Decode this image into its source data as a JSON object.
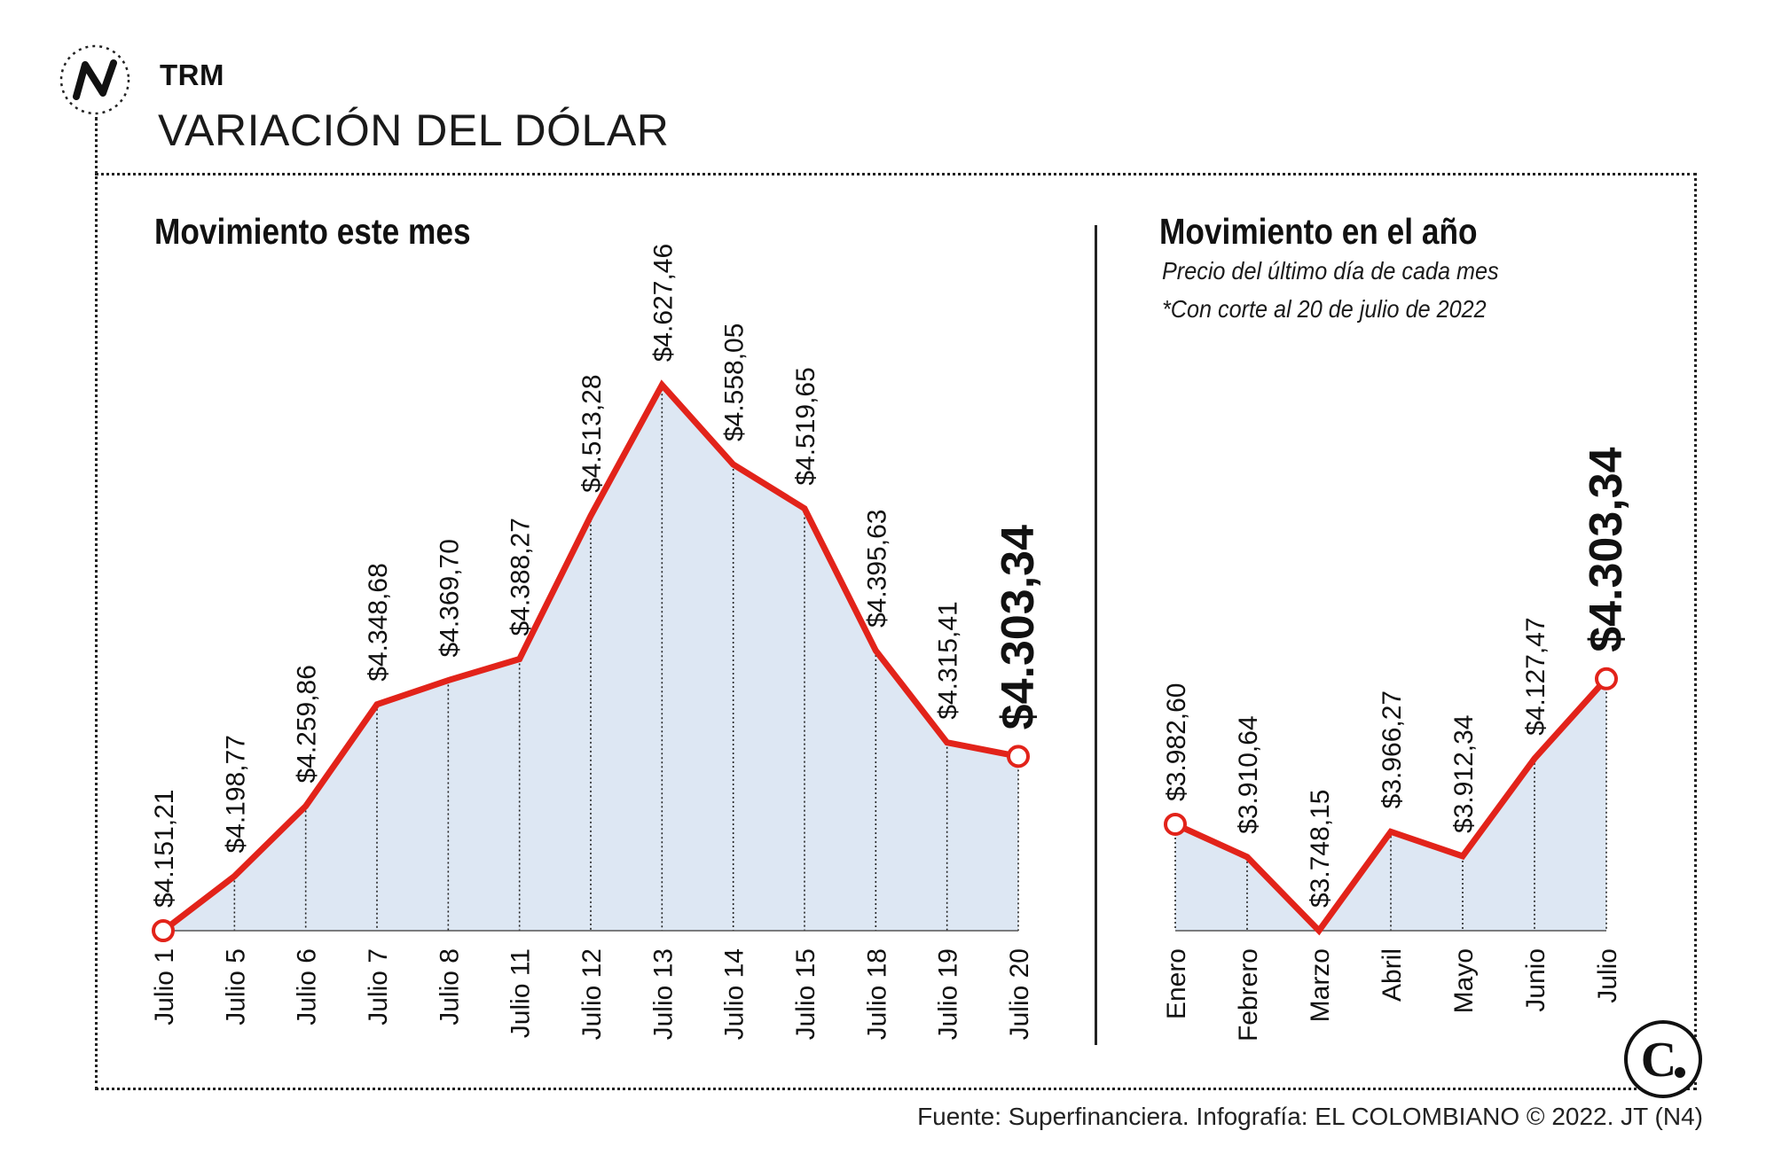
{
  "header": {
    "kicker": "TRM",
    "headline": "VARIACIÓN DEL DÓLAR"
  },
  "colors": {
    "line": "#e2231a",
    "fill": "#dde7f3",
    "text": "#111111"
  },
  "icons": {
    "section_logo": "trend-line-icon",
    "brand_logo": "el-colombiano-c-logo"
  },
  "source": "Fuente: Superfinanciera. Infografía: EL COLOMBIANO © 2022. JT (N4)",
  "chart_data": [
    {
      "type": "area",
      "title": "Movimiento este mes",
      "categories": [
        "Julio 1",
        "Julio 5",
        "Julio 6",
        "Julio 7",
        "Julio 8",
        "Julio 11",
        "Julio 12",
        "Julio 13",
        "Julio 14",
        "Julio 15",
        "Julio 18",
        "Julio 19",
        "Julio 20"
      ],
      "values": [
        4151.21,
        4198.77,
        4259.86,
        4348.68,
        4369.7,
        4388.27,
        4513.28,
        4627.46,
        4558.05,
        4519.65,
        4395.63,
        4315.41,
        4303.34
      ],
      "labels": [
        "$4.151,21",
        "$4.198,77",
        "$4.259,86",
        "$4.348,68",
        "$4.369,70",
        "$4.388,27",
        "$4.513,28",
        "$4.627,46",
        "$4.558,05",
        "$4.519,65",
        "$4.395,63",
        "$4.315,41",
        "$4.303,34"
      ],
      "highlight_last": true,
      "grid": false
    },
    {
      "type": "area",
      "title": "Movimiento en el año",
      "notes": [
        "Precio del último día de cada mes",
        "*Con corte al 20 de julio de 2022"
      ],
      "categories": [
        "Enero",
        "Febrero",
        "Marzo",
        "Abril",
        "Mayo",
        "Junio",
        "Julio"
      ],
      "values": [
        3982.6,
        3910.64,
        3748.15,
        3966.27,
        3912.34,
        4127.47,
        4303.34
      ],
      "labels": [
        "$3.982,60",
        "$3.910,64",
        "$3.748,15",
        "$3.966,27",
        "$3.912,34",
        "$4.127,47",
        "$4.303,34"
      ],
      "highlight_last": true,
      "grid": false
    }
  ]
}
